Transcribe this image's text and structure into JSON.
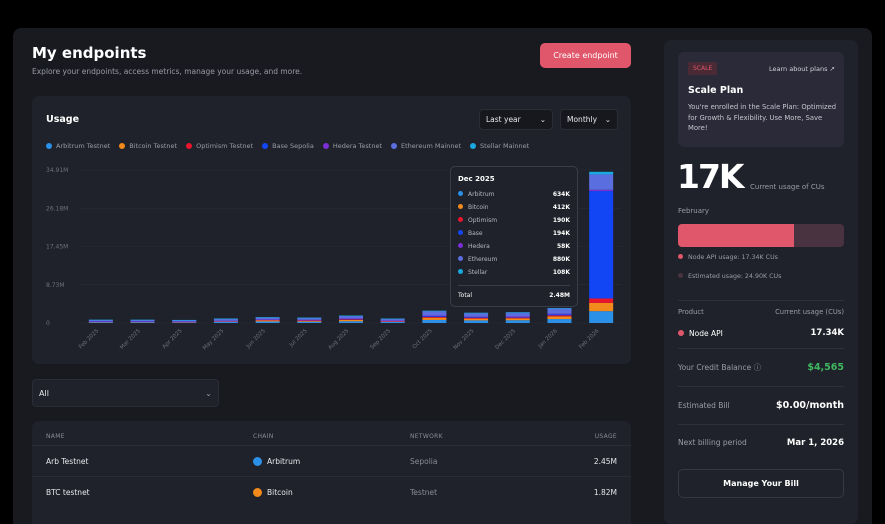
{
  "header": {
    "title": "My endpoints",
    "subtitle": "Explore your endpoints, access metrics, manage your usage, and more.",
    "create_label": "Create endpoint"
  },
  "usage": {
    "title": "Usage",
    "range": "Last year",
    "interval": "Monthly"
  },
  "colors": {
    "Arbitrum": "#2b90e8",
    "Bitcoin": "#f28a1c",
    "Optimism": "#e8152c",
    "Base": "#1246f5",
    "Hedera": "#7b2fd6",
    "Ethereum": "#5b6ee0",
    "Stellar": "#17a9e0",
    "accent": "#e0566a",
    "green": "#3fb760"
  },
  "chart_data": {
    "type": "bar",
    "stacked": true,
    "grid": true,
    "legend": "top-left",
    "ylim": [
      0,
      34.91
    ],
    "yticks": [
      "0",
      "8.73M",
      "17.45M",
      "26.18M",
      "34.91M"
    ],
    "categories": [
      "Feb 2025",
      "Mar 2025",
      "Apr 2025",
      "May 2025",
      "Jun 2025",
      "Jul 2025",
      "Aug 2025",
      "Sep 2025",
      "Oct 2025",
      "Nov 2025",
      "Dec 2025",
      "Jan 2026",
      "Feb 2026"
    ],
    "series": [
      {
        "name": "Arbitrum Testnet",
        "key": "Arbitrum",
        "values": [
          0.2,
          0.2,
          0.15,
          0.25,
          0.35,
          0.3,
          0.4,
          0.25,
          0.7,
          0.6,
          0.634,
          0.9,
          2.7
        ]
      },
      {
        "name": "Bitcoin Testnet",
        "key": "Bitcoin",
        "values": [
          0.1,
          0.1,
          0.1,
          0.15,
          0.25,
          0.2,
          0.3,
          0.15,
          0.5,
          0.4,
          0.412,
          0.6,
          1.9
        ]
      },
      {
        "name": "Optimism Testnet",
        "key": "Optimism",
        "values": [
          0.05,
          0.05,
          0.05,
          0.05,
          0.1,
          0.1,
          0.15,
          0.05,
          0.2,
          0.2,
          0.19,
          0.25,
          1.0
        ]
      },
      {
        "name": "Base Sepolia",
        "key": "Base",
        "values": [
          0.05,
          0.05,
          0.05,
          0.05,
          0.1,
          0.1,
          0.15,
          0.1,
          0.25,
          0.2,
          0.194,
          0.3,
          24.5
        ]
      },
      {
        "name": "Hedera Testnet",
        "key": "Hedera",
        "values": [
          0.02,
          0.02,
          0.02,
          0.02,
          0.03,
          0.03,
          0.04,
          0.02,
          0.06,
          0.05,
          0.058,
          0.06,
          0.3
        ]
      },
      {
        "name": "Ethereum Mainnet",
        "key": "Ethereum",
        "values": [
          0.3,
          0.3,
          0.3,
          0.45,
          0.45,
          0.45,
          0.6,
          0.4,
          1.0,
          0.8,
          0.88,
          1.2,
          3.5
        ]
      },
      {
        "name": "Stellar Mainnet",
        "key": "Stellar",
        "values": [
          0.03,
          0.03,
          0.03,
          0.05,
          0.05,
          0.05,
          0.06,
          0.04,
          0.1,
          0.1,
          0.108,
          0.1,
          0.6
        ]
      }
    ],
    "tooltip": {
      "title": "Dec 2025",
      "rows": [
        {
          "label": "Arbitrum",
          "value": "634K",
          "key": "Arbitrum"
        },
        {
          "label": "Bitcoin",
          "value": "412K",
          "key": "Bitcoin"
        },
        {
          "label": "Optimism",
          "value": "190K",
          "key": "Optimism"
        },
        {
          "label": "Base",
          "value": "194K",
          "key": "Base"
        },
        {
          "label": "Hedera",
          "value": "58K",
          "key": "Hedera"
        },
        {
          "label": "Ethereum",
          "value": "880K",
          "key": "Ethereum"
        },
        {
          "label": "Stellar",
          "value": "108K",
          "key": "Stellar"
        }
      ],
      "total_label": "Total",
      "total": "2.48M"
    }
  },
  "filter": {
    "value": "All"
  },
  "table": {
    "columns": [
      "NAME",
      "CHAIN",
      "NETWORK",
      "USAGE"
    ],
    "rows": [
      {
        "name": "Arb Testnet",
        "chain": "Arbitrum",
        "network": "Sepolia",
        "usage": "2.45M",
        "color": "#2b90e8"
      },
      {
        "name": "BTC testnet",
        "chain": "Bitcoin",
        "network": "Testnet",
        "usage": "1.82M",
        "color": "#f28a1c"
      }
    ]
  },
  "plan": {
    "badge": "SCALE",
    "learn": "Learn about plans",
    "title": "Scale Plan",
    "desc": "You're enrolled in the Scale Plan: Optimized for Growth & Flexibility. Use More, Save More!"
  },
  "usage_summary": {
    "big": "17K",
    "big_label": "Current usage of CUs",
    "month": "February",
    "progress_percent": 70,
    "node_label": "Node API usage: 17.34K CUs",
    "est_label": "Estimated usage: 24.90K CUs"
  },
  "billing": {
    "product_label": "Product",
    "usage_col": "Current usage (CUs)",
    "product": "Node API",
    "product_usage": "17.34K",
    "credit_label": "Your Credit Balance",
    "credit": "$4,565",
    "est_label": "Estimated Bill",
    "est": "$0.00/month",
    "next_label": "Next billing period",
    "next": "Mar 1, 2026",
    "manage": "Manage Your Bill"
  }
}
